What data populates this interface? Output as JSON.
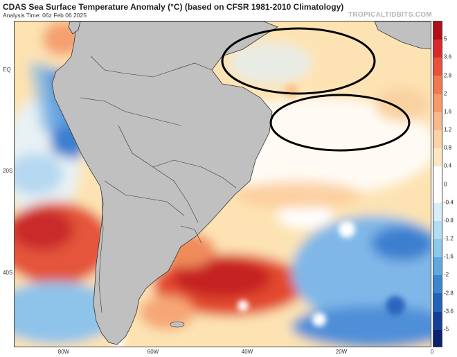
{
  "header": {
    "title": "CDAS Sea Surface Temperature Anomaly (°C) (based on CFSR 1981-2010 Climatology)",
    "analysis_time": "Analysis Time: 06z Feb 06 2025",
    "brand": "TROPICALTIDBITS.COM"
  },
  "map": {
    "latitude_labels": [
      "EQ",
      "20S",
      "40S"
    ],
    "longitude_labels": [
      "80W",
      "60W",
      "40W",
      "20W",
      "0"
    ],
    "land_color": "#c0c0c0",
    "annotations": [
      {
        "name": "ellipse-north",
        "shape": "ellipse",
        "color": "#000000"
      },
      {
        "name": "ellipse-south",
        "shape": "ellipse",
        "color": "#000000"
      }
    ]
  },
  "colorbar": {
    "labels": [
      "5",
      "3.6",
      "2.8",
      "2",
      "1.6",
      "1.2",
      "0.8",
      "0.4",
      "0",
      "-0.4",
      "-0.8",
      "-1.2",
      "-1.6",
      "-2",
      "-2.8",
      "-3.6",
      "-5"
    ],
    "colors": [
      "#b20f1a",
      "#d9292d",
      "#e8523d",
      "#f0794f",
      "#f59b6a",
      "#f8b98a",
      "#fbd3a7",
      "#fde8c2",
      "#ffffff",
      "#ffffff",
      "#d8edf8",
      "#b2dcf3",
      "#8cc7ec",
      "#5fa9e0",
      "#3a86cf",
      "#2461b8",
      "#173f98",
      "#0c2270"
    ]
  }
}
